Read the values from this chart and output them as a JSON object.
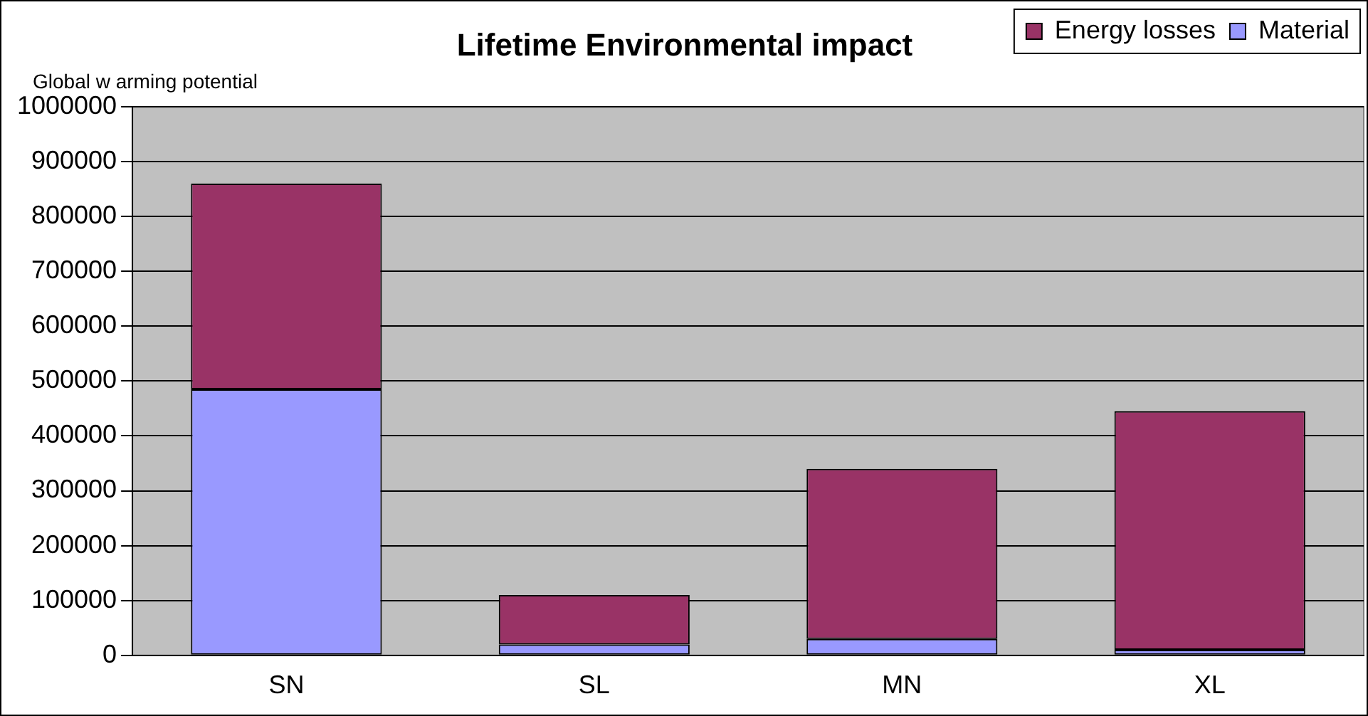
{
  "chart_data": {
    "type": "bar",
    "title": "Lifetime Environmental impact",
    "ylabel": "Global w arming potential",
    "categories": [
      "SN",
      "SL",
      "MN",
      "XL"
    ],
    "stacked": true,
    "series": [
      {
        "name": "Material",
        "color": "#9999ff",
        "values": [
          485000,
          20000,
          30000,
          10000
        ]
      },
      {
        "name": "Energy losses",
        "color": "#993366",
        "values": [
          375000,
          90000,
          310000,
          435000
        ]
      }
    ],
    "ylim": [
      0,
      1000000
    ],
    "yticks": [
      0,
      100000,
      200000,
      300000,
      400000,
      500000,
      600000,
      700000,
      800000,
      900000,
      1000000
    ],
    "grid": "y",
    "legend": "top right"
  }
}
